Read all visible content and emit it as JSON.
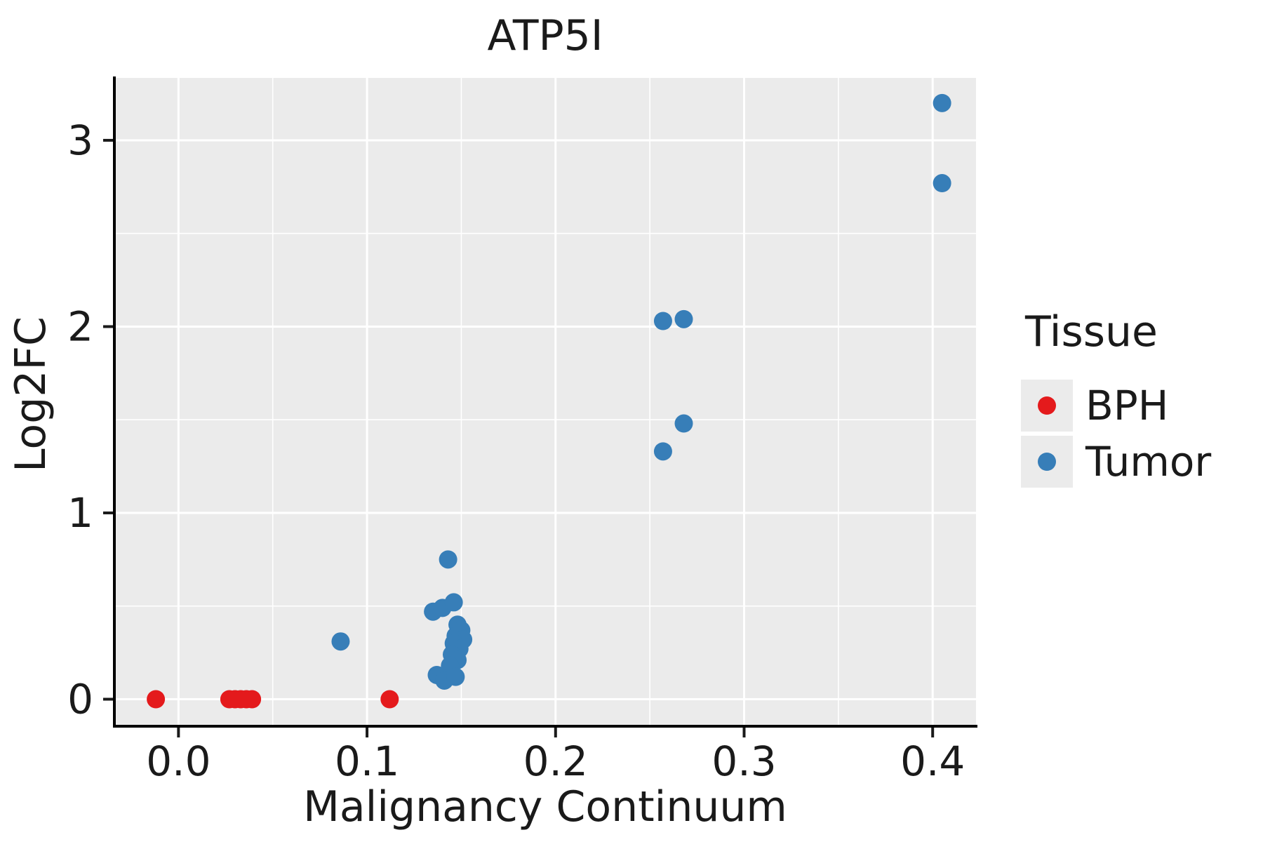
{
  "chart_data": {
    "type": "scatter",
    "title": "ATP5I",
    "xlabel": "Malignancy Continuum",
    "ylabel": "Log2FC",
    "legend_title": "Tissue",
    "legend_position": "right",
    "grid": true,
    "panel_bg": "#ebebeb",
    "grid_color": "#ffffff",
    "xlim": [
      -0.034,
      0.423
    ],
    "ylim": [
      -0.145,
      3.335
    ],
    "x_ticks": [
      0.0,
      0.1,
      0.2,
      0.3,
      0.4
    ],
    "x_tick_labels": [
      "0.0",
      "0.1",
      "0.2",
      "0.3",
      "0.4"
    ],
    "x_minor_ticks": [
      0.05,
      0.15,
      0.25,
      0.35
    ],
    "y_ticks": [
      0,
      1,
      2,
      3
    ],
    "y_tick_labels": [
      "0",
      "1",
      "2",
      "3"
    ],
    "y_minor_ticks": [
      0.5,
      1.5,
      2.5
    ],
    "series": [
      {
        "name": "BPH",
        "color": "#e41a1c",
        "points": [
          [
            -0.012,
            0.0
          ],
          [
            0.027,
            0.0
          ],
          [
            0.03,
            0.0
          ],
          [
            0.033,
            0.0
          ],
          [
            0.036,
            0.0
          ],
          [
            0.039,
            0.0
          ],
          [
            0.112,
            0.0
          ]
        ]
      },
      {
        "name": "Tumor",
        "color": "#377eb8",
        "points": [
          [
            0.086,
            0.31
          ],
          [
            0.143,
            0.75
          ],
          [
            0.135,
            0.47
          ],
          [
            0.14,
            0.49
          ],
          [
            0.146,
            0.52
          ],
          [
            0.148,
            0.4
          ],
          [
            0.15,
            0.37
          ],
          [
            0.147,
            0.34
          ],
          [
            0.151,
            0.32
          ],
          [
            0.146,
            0.3
          ],
          [
            0.149,
            0.27
          ],
          [
            0.145,
            0.24
          ],
          [
            0.148,
            0.21
          ],
          [
            0.144,
            0.18
          ],
          [
            0.137,
            0.13
          ],
          [
            0.141,
            0.1
          ],
          [
            0.147,
            0.12
          ],
          [
            0.257,
            2.03
          ],
          [
            0.268,
            2.04
          ],
          [
            0.268,
            1.48
          ],
          [
            0.257,
            1.33
          ],
          [
            0.405,
            3.2
          ],
          [
            0.405,
            2.77
          ]
        ]
      }
    ]
  }
}
